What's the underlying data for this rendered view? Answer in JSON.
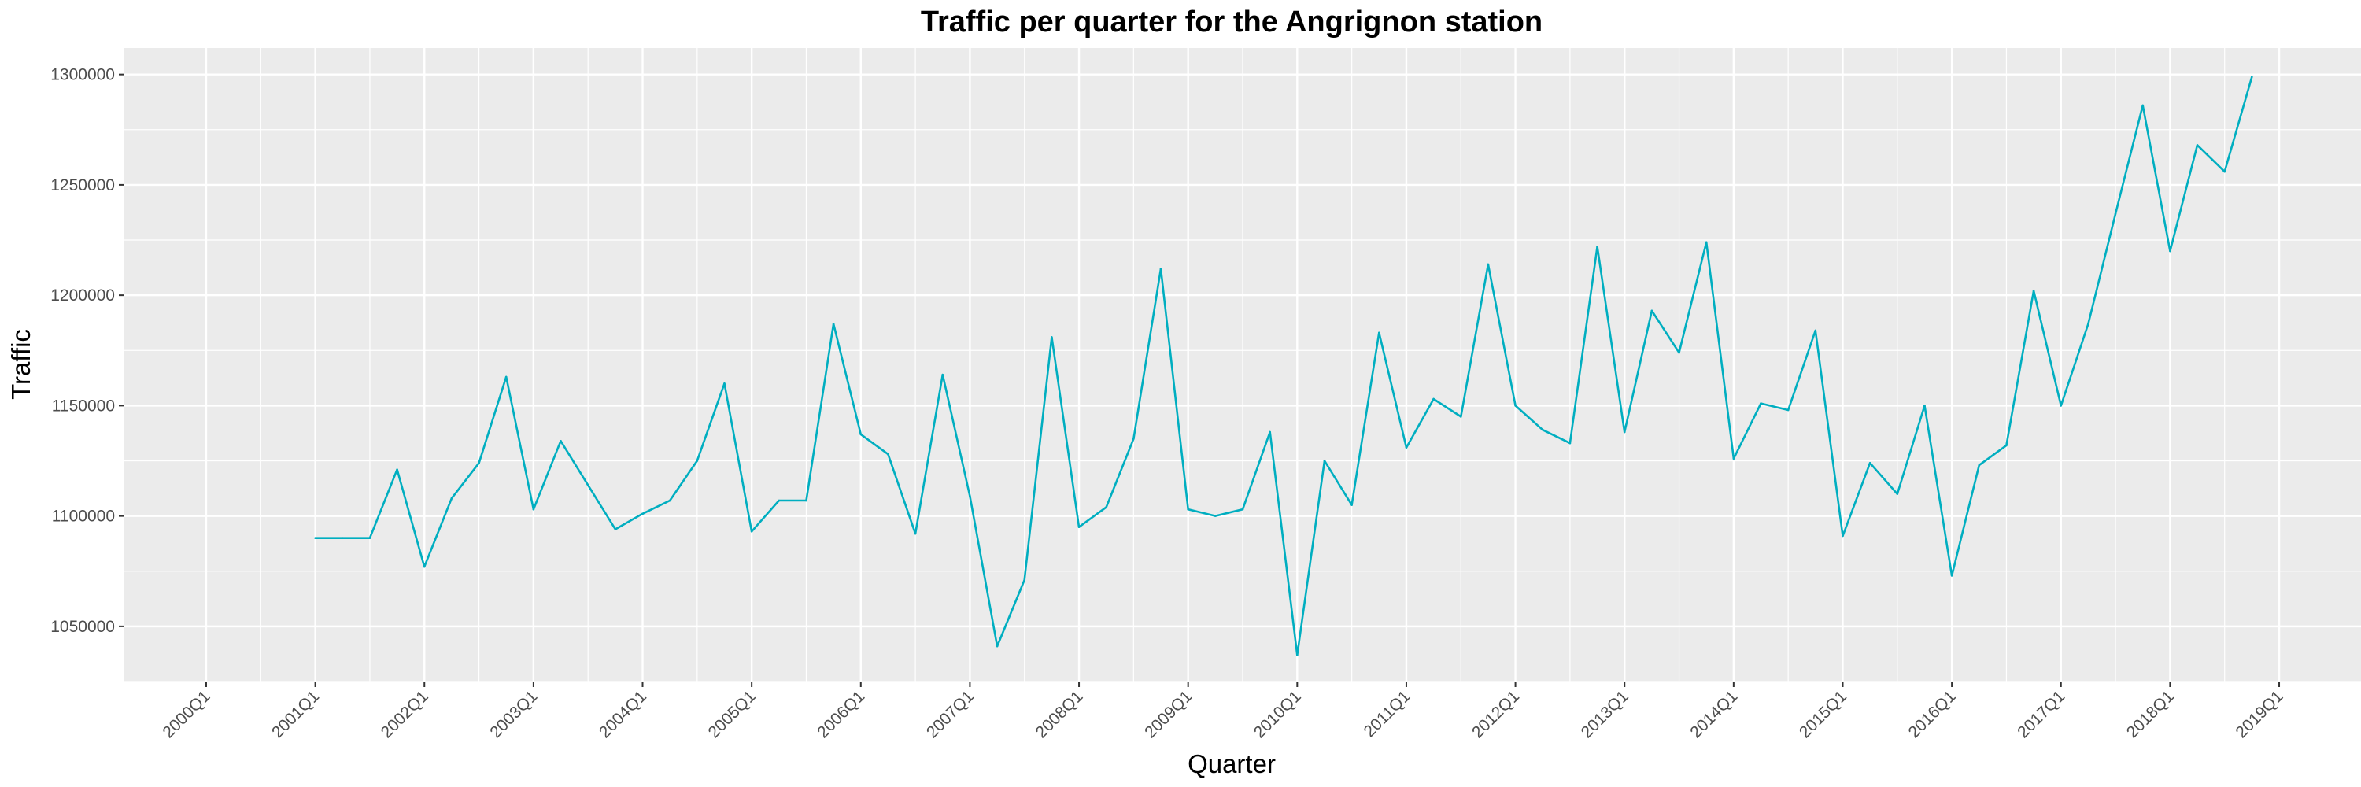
{
  "chart_data": {
    "type": "line",
    "title": "Traffic per quarter for the Angrignon station",
    "xlabel": "Quarter",
    "ylabel": "Traffic",
    "x_tick_labels": [
      "2000Q1",
      "2001Q1",
      "2002Q1",
      "2003Q1",
      "2004Q1",
      "2005Q1",
      "2006Q1",
      "2007Q1",
      "2008Q1",
      "2009Q1",
      "2010Q1",
      "2011Q1",
      "2012Q1",
      "2013Q1",
      "2014Q1",
      "2015Q1",
      "2016Q1",
      "2017Q1",
      "2018Q1",
      "2019Q1"
    ],
    "y_tick_labels": [
      "1050000",
      "1100000",
      "1150000",
      "1200000",
      "1250000",
      "1300000"
    ],
    "ylim": [
      1025000,
      1312000
    ],
    "xlim": [
      "1999Q2",
      "2019Q4"
    ],
    "grid": true,
    "colors": {
      "line": "#00AEC0",
      "panel": "#EBEBEB",
      "grid": "#FFFFFF"
    },
    "series": [
      {
        "start_quarter": "2001Q1",
        "values": [
          1090000,
          1090000,
          1090000,
          1121000,
          1077000,
          1108000,
          1124000,
          1163000,
          1103000,
          1134000,
          1114000,
          1094000,
          1101000,
          1107000,
          1125000,
          1160000,
          1093000,
          1107000,
          1107000,
          1187000,
          1137000,
          1128000,
          1092000,
          1164000,
          1109000,
          1041000,
          1071000,
          1181000,
          1095000,
          1104000,
          1135000,
          1212000,
          1103000,
          1100000,
          1103000,
          1138000,
          1037000,
          1125000,
          1105000,
          1183000,
          1131000,
          1153000,
          1145000,
          1214000,
          1150000,
          1139000,
          1133000,
          1222000,
          1138000,
          1193000,
          1174000,
          1224000,
          1126000,
          1151000,
          1148000,
          1184000,
          1091000,
          1124000,
          1110000,
          1150000,
          1073000,
          1123000,
          1132000,
          1202000,
          1150000,
          1187000,
          1237000,
          1286000,
          1220000,
          1268000,
          1256000,
          1299000
        ]
      }
    ]
  }
}
